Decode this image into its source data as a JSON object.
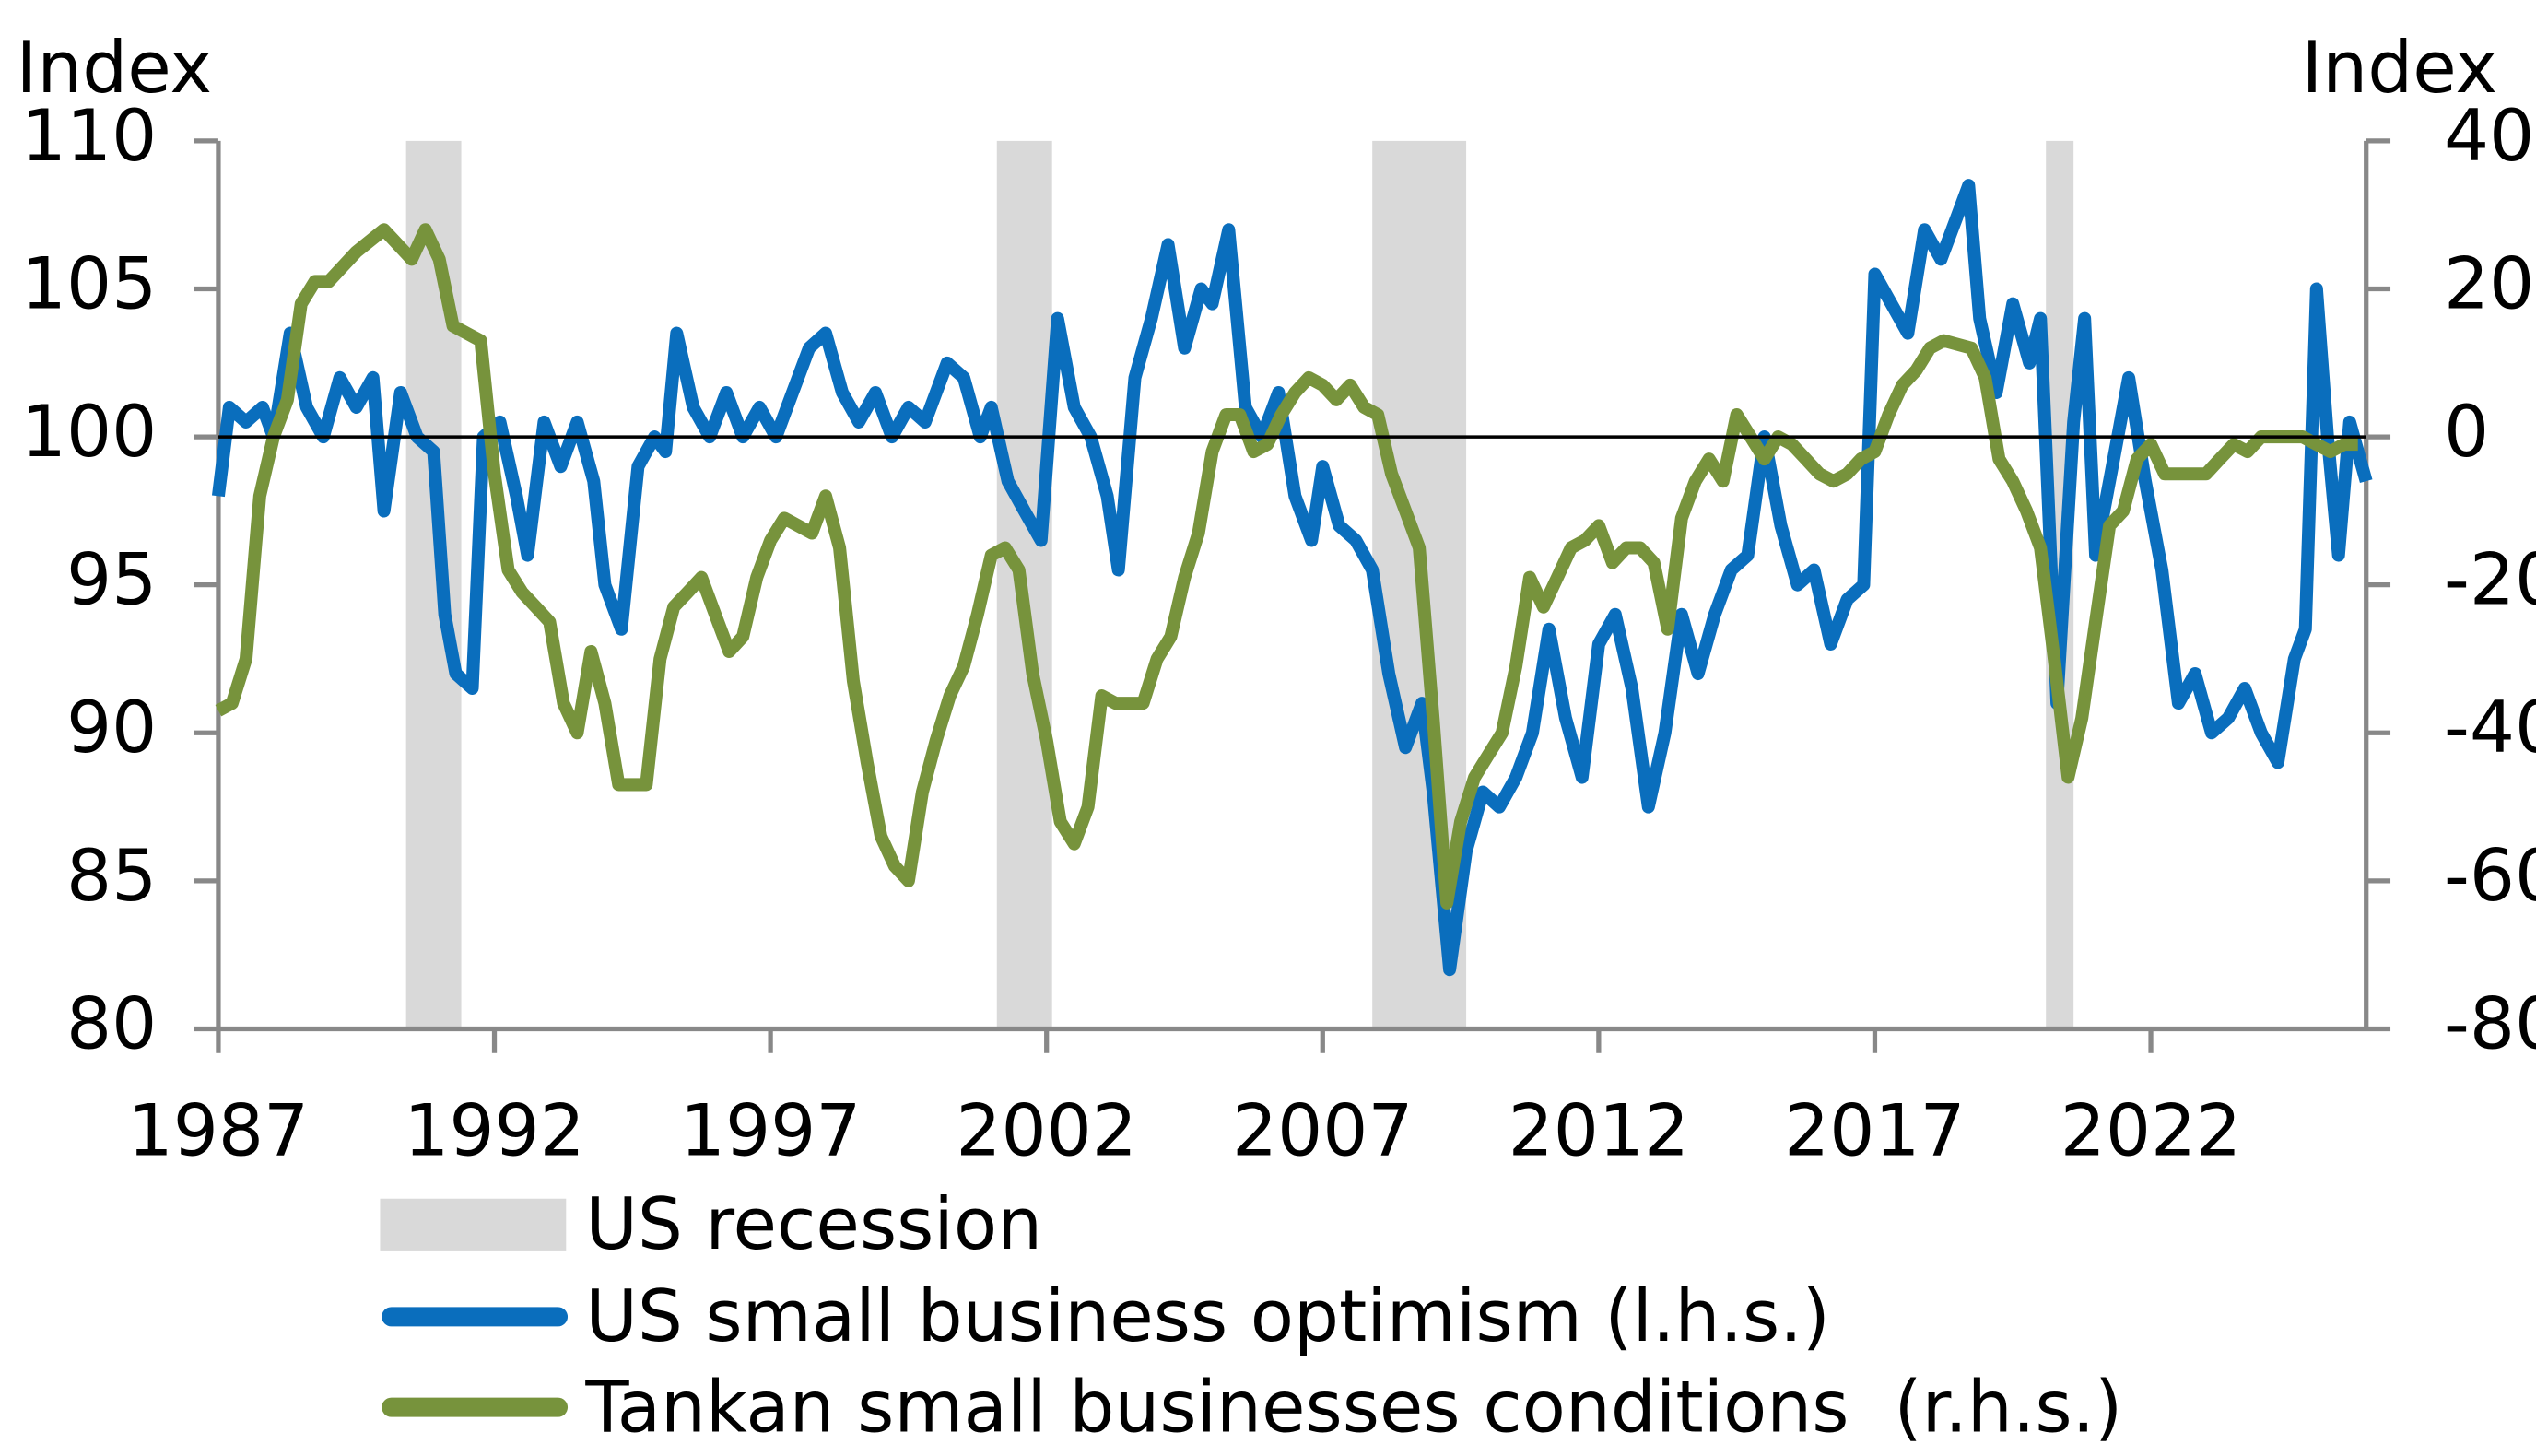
{
  "chart_data": {
    "type": "line",
    "y_axis_label": "Index",
    "y2_axis_label": "Index",
    "xlim": [
      1987,
      2025.9
    ],
    "xticks": [
      1987,
      1992,
      1997,
      2002,
      2007,
      2012,
      2017,
      2022
    ],
    "ylim": [
      80,
      110
    ],
    "yticks": [
      80,
      85,
      90,
      95,
      100,
      105,
      110
    ],
    "y2lim": [
      -80,
      40
    ],
    "y2ticks": [
      -80,
      -60,
      -40,
      -20,
      0,
      20,
      40
    ],
    "hline": 100,
    "recessions": {
      "name": "US recession",
      "color": "#d9d9d9",
      "ranges": [
        [
          1990.4,
          1991.4
        ],
        [
          2001.1,
          2002.1
        ],
        [
          2007.9,
          2009.6
        ],
        [
          2020.1,
          2020.6
        ]
      ]
    },
    "series": [
      {
        "name": "US small business optimism (l.h.s.)",
        "color": "#0a6ebd",
        "axis": "y",
        "x": [
          1987.0,
          1987.2,
          1987.5,
          1987.8,
          1988.0,
          1988.3,
          1988.6,
          1988.9,
          1989.2,
          1989.5,
          1989.8,
          1990.0,
          1990.3,
          1990.6,
          1990.9,
          1991.1,
          1991.3,
          1991.6,
          1991.8,
          1992.1,
          1992.4,
          1992.6,
          1992.9,
          1993.2,
          1993.5,
          1993.8,
          1994.0,
          1994.3,
          1994.6,
          1994.9,
          1995.1,
          1995.3,
          1995.6,
          1995.9,
          1996.2,
          1996.5,
          1996.8,
          1997.1,
          1997.4,
          1997.7,
          1998.0,
          1998.3,
          1998.6,
          1998.9,
          1999.2,
          1999.5,
          1999.8,
          2000.2,
          2000.5,
          2000.8,
          2001.0,
          2001.3,
          2001.6,
          2001.9,
          2002.2,
          2002.5,
          2002.8,
          2003.1,
          2003.3,
          2003.6,
          2003.9,
          2004.2,
          2004.5,
          2004.8,
          2005.0,
          2005.3,
          2005.6,
          2005.9,
          2006.2,
          2006.5,
          2006.8,
          2007.0,
          2007.3,
          2007.6,
          2007.9,
          2008.2,
          2008.5,
          2008.8,
          2009.0,
          2009.3,
          2009.6,
          2009.9,
          2010.2,
          2010.5,
          2010.8,
          2011.1,
          2011.4,
          2011.7,
          2012.0,
          2012.3,
          2012.6,
          2012.9,
          2013.2,
          2013.5,
          2013.8,
          2014.1,
          2014.4,
          2014.7,
          2015.0,
          2015.3,
          2015.6,
          2015.9,
          2016.2,
          2016.5,
          2016.8,
          2017.0,
          2017.3,
          2017.6,
          2017.9,
          2018.2,
          2018.5,
          2018.7,
          2018.9,
          2019.2,
          2019.5,
          2019.8,
          2020.0,
          2020.3,
          2020.6,
          2020.8,
          2021.0,
          2021.3,
          2021.6,
          2021.9,
          2022.2,
          2022.5,
          2022.8,
          2023.1,
          2023.4,
          2023.7,
          2024.0,
          2024.3,
          2024.6,
          2024.8,
          2025.0,
          2025.2,
          2025.4,
          2025.6,
          2025.9
        ],
        "values": [
          98,
          101,
          100.5,
          101,
          100,
          103.5,
          101,
          100,
          102,
          101,
          102,
          97.5,
          101.5,
          100,
          99.5,
          94,
          92,
          91.5,
          100,
          100.5,
          98,
          96,
          100.5,
          99,
          100.5,
          98.5,
          95,
          93.5,
          99,
          100,
          99.5,
          103.5,
          101,
          100,
          101.5,
          100,
          101,
          100,
          101.5,
          103,
          103.5,
          101.5,
          100.5,
          101.5,
          100,
          101,
          100.5,
          102.5,
          102,
          100,
          101,
          98.5,
          97.5,
          96.5,
          104,
          101,
          100,
          98,
          95.5,
          102,
          104,
          106.5,
          103,
          105,
          104.5,
          107,
          101,
          100,
          101.5,
          98,
          96.5,
          99,
          97,
          96.5,
          95.5,
          92,
          89.5,
          91,
          88,
          82,
          86,
          88,
          87.5,
          88.5,
          90,
          93.5,
          90.5,
          88.5,
          93,
          94,
          91.5,
          87.5,
          90,
          94,
          92,
          94,
          95.5,
          96,
          100,
          97,
          95,
          95.5,
          93,
          94.5,
          95,
          105.5,
          104.5,
          103.5,
          107,
          106,
          107.5,
          108.5,
          104,
          101.5,
          104.5,
          102.5,
          104,
          91,
          100.5,
          104,
          96,
          99,
          102,
          98.5,
          95.5,
          91,
          92,
          90,
          90.5,
          91.5,
          90,
          89,
          92.5,
          93.5,
          105,
          100,
          96,
          100.5,
          98.5
        ]
      },
      {
        "name": "Tankan small businesses conditions  (r.h.s.)",
        "color": "#77933c",
        "axis": "y2",
        "x": [
          1987.0,
          1987.25,
          1987.5,
          1987.75,
          1988.0,
          1988.25,
          1988.5,
          1988.75,
          1989.0,
          1989.5,
          1990.0,
          1990.5,
          1990.75,
          1991.0,
          1991.25,
          1991.75,
          1992.0,
          1992.25,
          1992.5,
          1992.75,
          1993.0,
          1993.25,
          1993.5,
          1993.75,
          1994.0,
          1994.25,
          1994.75,
          1995.0,
          1995.25,
          1995.5,
          1995.75,
          1996.0,
          1996.25,
          1996.5,
          1996.75,
          1997.0,
          1997.25,
          1997.75,
          1998.0,
          1998.25,
          1998.5,
          1998.75,
          1999.0,
          1999.25,
          1999.5,
          1999.75,
          2000.0,
          2000.25,
          2000.5,
          2000.75,
          2001.0,
          2001.25,
          2001.5,
          2001.75,
          2002.0,
          2002.25,
          2002.5,
          2002.75,
          2003.0,
          2003.25,
          2003.75,
          2004.0,
          2004.25,
          2004.5,
          2004.75,
          2005.0,
          2005.25,
          2005.5,
          2005.75,
          2006.0,
          2006.25,
          2006.5,
          2006.75,
          2007.0,
          2007.25,
          2007.5,
          2007.75,
          2008.0,
          2008.25,
          2008.5,
          2008.75,
          2009.0,
          2009.25,
          2009.5,
          2009.75,
          2010.0,
          2010.25,
          2010.5,
          2010.75,
          2011.0,
          2011.25,
          2011.5,
          2011.75,
          2012.0,
          2012.25,
          2012.5,
          2012.75,
          2013.0,
          2013.25,
          2013.5,
          2013.75,
          2014.0,
          2014.25,
          2014.5,
          2014.75,
          2015.0,
          2015.25,
          2015.5,
          2015.75,
          2016.0,
          2016.25,
          2016.5,
          2016.75,
          2017.0,
          2017.25,
          2017.5,
          2017.75,
          2018.0,
          2018.25,
          2018.75,
          2019.0,
          2019.25,
          2019.5,
          2019.75,
          2020.0,
          2020.25,
          2020.5,
          2020.75,
          2021.0,
          2021.25,
          2021.5,
          2021.75,
          2022.0,
          2022.25,
          2022.5,
          2022.75,
          2023.0,
          2023.25,
          2023.5,
          2023.75,
          2024.0,
          2024.25,
          2024.5,
          2024.75,
          2025.0,
          2025.25,
          2025.5,
          2025.75
        ],
        "values": [
          -37,
          -36,
          -30,
          -8,
          0,
          5,
          18,
          21,
          21,
          25,
          28,
          24,
          28,
          24,
          15,
          13,
          -5,
          -18,
          -21,
          -23,
          -25,
          -36,
          -40,
          -29,
          -36,
          -47,
          -47,
          -30,
          -23,
          -21,
          -19,
          -24,
          -29,
          -27,
          -19,
          -14,
          -11,
          -13,
          -8,
          -15,
          -33,
          -44,
          -54,
          -58,
          -60,
          -48,
          -41,
          -35,
          -31,
          -24,
          -16,
          -15,
          -18,
          -32,
          -41,
          -52,
          -55,
          -50,
          -35,
          -36,
          -36,
          -30,
          -27,
          -19,
          -13,
          -2,
          3,
          3,
          -2,
          -1,
          3,
          6,
          8,
          7,
          5,
          7,
          4,
          3,
          -5,
          -10,
          -15,
          -38,
          -63,
          -52,
          -46,
          -43,
          -40,
          -31,
          -19,
          -23,
          -19,
          -15,
          -14,
          -12,
          -17,
          -15,
          -15,
          -17,
          -26,
          -11,
          -6,
          -3,
          -6,
          3,
          0,
          -3,
          0,
          -1,
          -3,
          -5,
          -6,
          -5,
          -3,
          -2,
          3,
          7,
          9,
          12,
          13,
          12,
          8,
          -3,
          -6,
          -10,
          -15,
          -30,
          -46,
          -38,
          -25,
          -12,
          -10,
          -3,
          -1,
          -5,
          -5,
          -5,
          -5,
          -3,
          -1,
          -2,
          0,
          0,
          0,
          0,
          -1,
          -2,
          -1,
          -1
        ]
      }
    ]
  }
}
